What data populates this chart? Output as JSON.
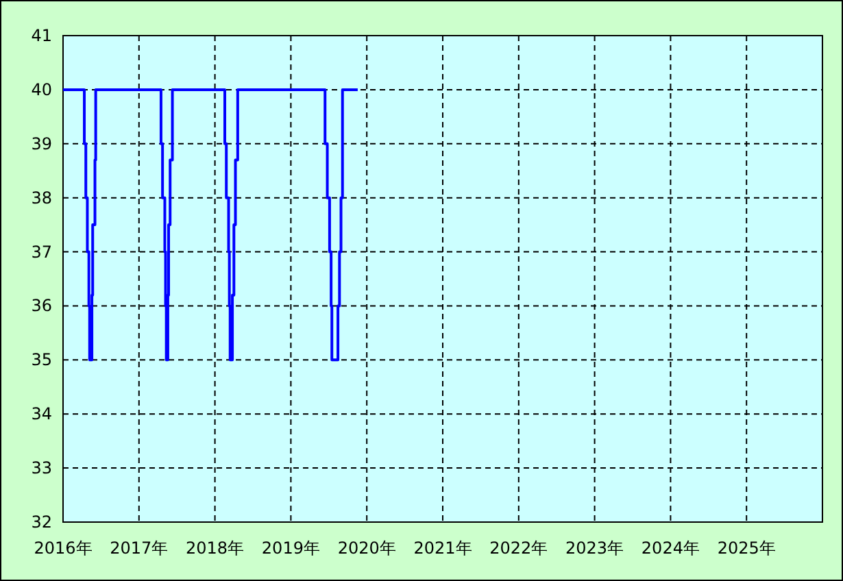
{
  "chart_data": {
    "type": "line",
    "x": [
      2016.0,
      2016.28,
      2016.28,
      2016.3,
      2016.3,
      2016.32,
      2016.32,
      2016.34,
      2016.34,
      2016.35,
      2016.35,
      2016.38,
      2016.38,
      2016.39,
      2016.39,
      2016.42,
      2016.42,
      2016.43,
      2016.43,
      2017.29,
      2017.29,
      2017.31,
      2017.31,
      2017.34,
      2017.34,
      2017.35,
      2017.35,
      2017.36,
      2017.36,
      2017.38,
      2017.38,
      2017.39,
      2017.39,
      2017.41,
      2017.41,
      2017.44,
      2017.44,
      2018.13,
      2018.13,
      2018.15,
      2018.15,
      2018.18,
      2018.18,
      2018.19,
      2018.19,
      2018.2,
      2018.2,
      2018.23,
      2018.23,
      2018.25,
      2018.25,
      2018.27,
      2018.27,
      2018.3,
      2018.3,
      2019.45,
      2019.45,
      2019.48,
      2019.48,
      2019.51,
      2019.51,
      2019.53,
      2019.53,
      2019.54,
      2019.54,
      2019.62,
      2019.62,
      2019.64,
      2019.64,
      2019.66,
      2019.66,
      2019.68,
      2019.68,
      2019.88
    ],
    "series": [
      {
        "color": "#0000ff",
        "values": [
          40,
          40,
          39,
          39,
          38,
          38,
          37,
          37,
          36,
          36,
          35,
          35,
          36.2,
          36.2,
          37.5,
          37.5,
          38.7,
          38.7,
          40,
          40,
          39,
          39,
          38,
          38,
          37,
          37,
          36,
          36,
          35,
          35,
          36.2,
          36.2,
          37.5,
          37.5,
          38.7,
          38.7,
          40,
          40,
          39,
          39,
          38,
          38,
          37,
          37,
          36,
          36,
          35,
          35,
          36.2,
          36.2,
          37.5,
          37.5,
          38.7,
          38.7,
          40,
          40,
          39,
          39,
          38,
          38,
          37,
          37,
          36,
          36,
          35,
          35,
          36,
          36,
          37,
          37,
          38,
          38,
          40,
          40
        ]
      }
    ],
    "xlim": [
      2016,
      2026
    ],
    "xticks": [
      {
        "value": 2016,
        "label": "2016年"
      },
      {
        "value": 2017,
        "label": "2017年"
      },
      {
        "value": 2018,
        "label": "2018年"
      },
      {
        "value": 2019,
        "label": "2019年"
      },
      {
        "value": 2020,
        "label": "2020年"
      },
      {
        "value": 2021,
        "label": "2021年"
      },
      {
        "value": 2022,
        "label": "2022年"
      },
      {
        "value": 2023,
        "label": "2023年"
      },
      {
        "value": 2024,
        "label": "2024年"
      },
      {
        "value": 2025,
        "label": "2025年"
      }
    ],
    "ylim": [
      32,
      41
    ],
    "yticks": [
      32,
      33,
      34,
      35,
      36,
      37,
      38,
      39,
      40,
      41
    ],
    "grid": true
  }
}
